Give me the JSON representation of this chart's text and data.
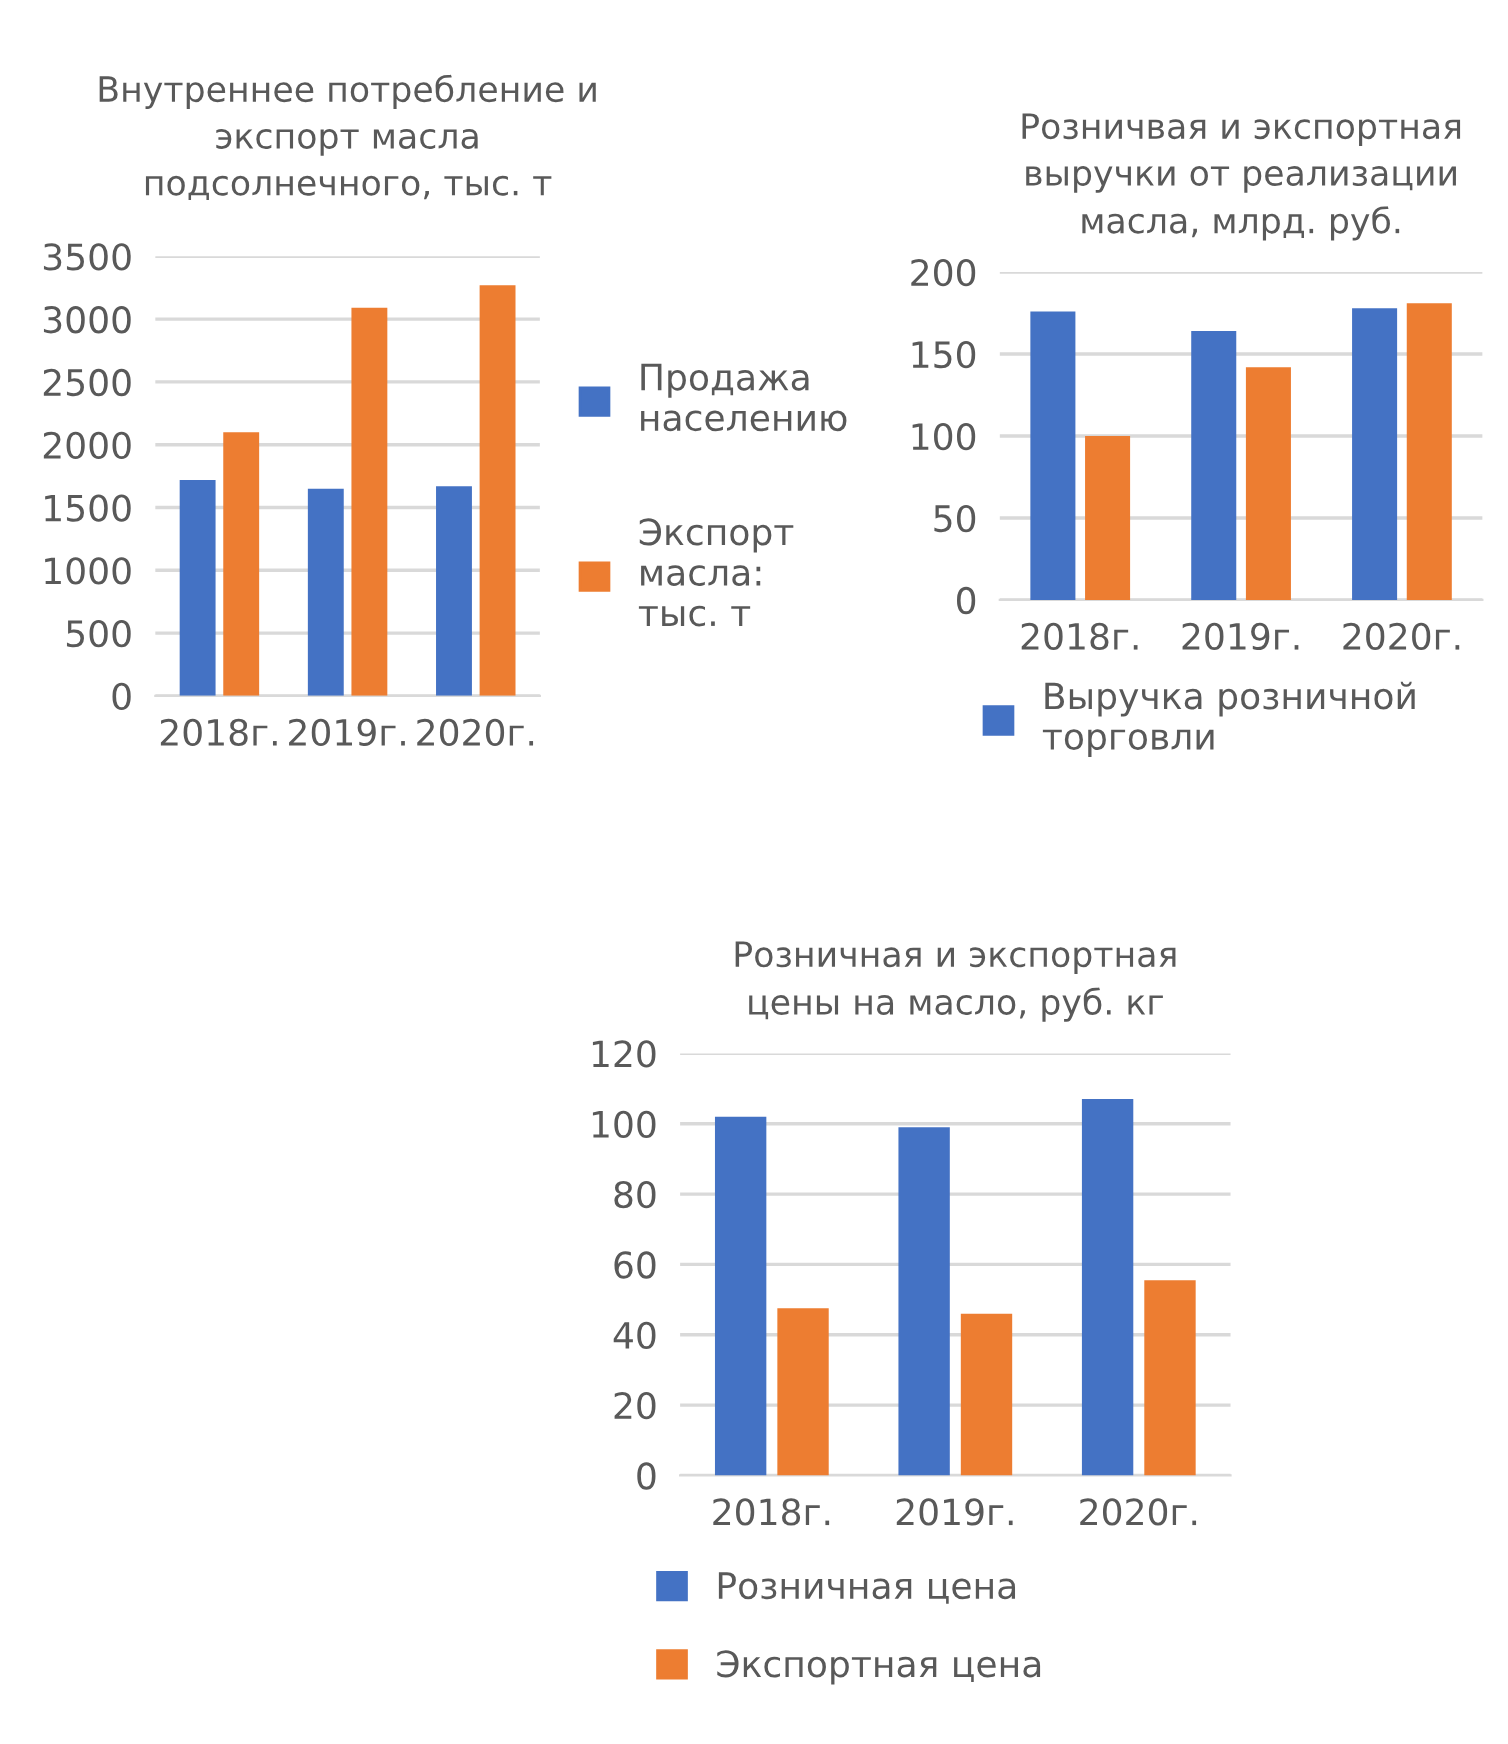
{
  "chart_data": [
    {
      "type": "bar",
      "title": "Внутреннее потребление и экспорт масла подсолнечного, тыс. т",
      "categories": [
        "2018г.",
        "2019г.",
        "2020г."
      ],
      "series": [
        {
          "name": "Продажа населению",
          "color": "#4472c4",
          "values": [
            1720,
            1650,
            1670
          ]
        },
        {
          "name": "Экспорт масла: тыс. т",
          "color": "#ed7d31",
          "values": [
            2100,
            3090,
            3270
          ]
        }
      ],
      "ylim": [
        0,
        3500
      ],
      "yticks": [
        0,
        500,
        1000,
        1500,
        2000,
        2500,
        3000,
        3500
      ],
      "grid": "y",
      "legend": "right"
    },
    {
      "type": "bar",
      "title": "Розничвая и экспортная выручки от реализации масла, млрд. руб.",
      "categories": [
        "2018г.",
        "2019г.",
        "2020г."
      ],
      "series": [
        {
          "name": "Выручка розничной торговли",
          "color": "#4472c4",
          "values": [
            176,
            164,
            178
          ]
        },
        {
          "color": "#ed7d31",
          "values": [
            100,
            142,
            181
          ]
        }
      ],
      "ylim": [
        0,
        200
      ],
      "yticks": [
        0,
        50,
        100,
        150,
        200
      ],
      "grid": "y",
      "legend": "bottom"
    },
    {
      "type": "bar",
      "title": "Розничная и экспортная цены на масло, руб. кг",
      "categories": [
        "2018г.",
        "2019г.",
        "2020г."
      ],
      "series": [
        {
          "name": "Розничная цена",
          "color": "#4472c4",
          "values": [
            102,
            99,
            107
          ]
        },
        {
          "name": "Экспортная цена",
          "color": "#ed7d31",
          "values": [
            47.5,
            46,
            55.5
          ]
        }
      ],
      "ylim": [
        0,
        120
      ],
      "yticks": [
        0,
        20,
        40,
        60,
        80,
        100,
        120
      ],
      "grid": "y",
      "legend": "bottom"
    }
  ]
}
